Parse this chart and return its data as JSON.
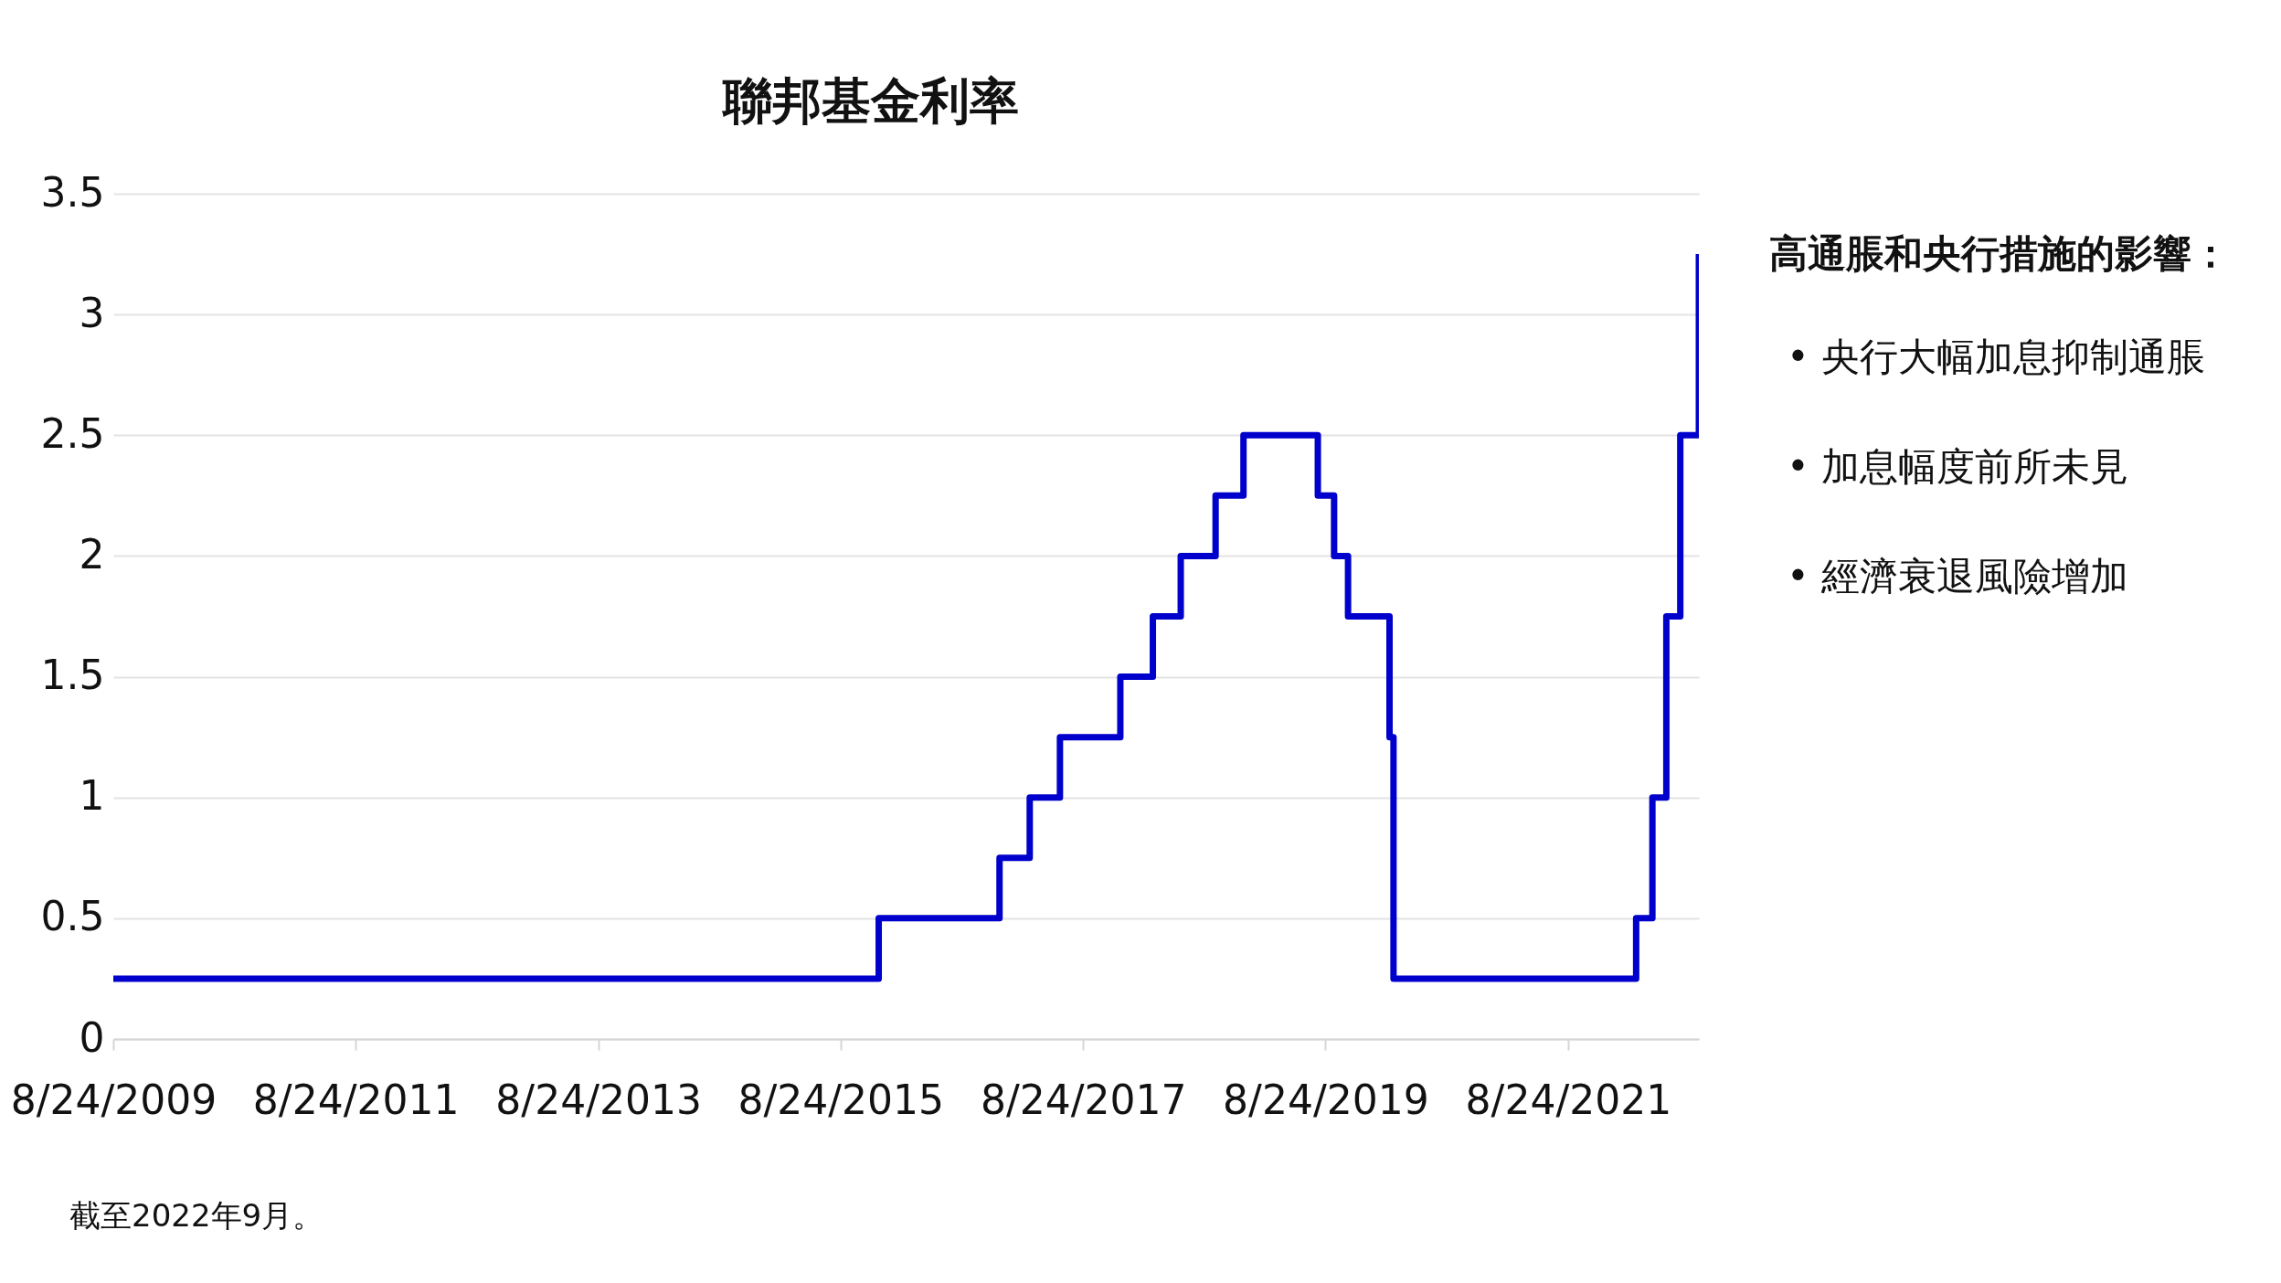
{
  "chart_data": {
    "type": "step",
    "title": "聯邦基金利率",
    "x": [
      "2009-08-24",
      "2015-12-17",
      "2016-12-15",
      "2017-03-16",
      "2017-06-15",
      "2017-12-14",
      "2018-03-22",
      "2018-06-14",
      "2018-09-27",
      "2018-12-20",
      "2019-08-01",
      "2019-09-19",
      "2019-10-31",
      "2020-03-04",
      "2020-03-16",
      "2022-03-17",
      "2022-05-05",
      "2022-06-16",
      "2022-07-28",
      "2022-09-22"
    ],
    "series": [
      {
        "color": "#0000cc",
        "values": [
          0.25,
          0.5,
          0.75,
          1.0,
          1.25,
          1.5,
          1.75,
          2.0,
          2.25,
          2.5,
          2.25,
          2.0,
          1.75,
          1.25,
          0.25,
          0.5,
          1.0,
          1.75,
          2.5,
          3.25
        ]
      }
    ],
    "xlim": [
      "2009-08-24",
      "2022-09-22"
    ],
    "xticks": [
      {
        "value": "2009-08-24",
        "label": "8/24/2009"
      },
      {
        "value": "2011-08-24",
        "label": "8/24/2011"
      },
      {
        "value": "2013-08-24",
        "label": "8/24/2013"
      },
      {
        "value": "2015-08-24",
        "label": "8/24/2015"
      },
      {
        "value": "2017-08-24",
        "label": "8/24/2017"
      },
      {
        "value": "2019-08-24",
        "label": "8/24/2019"
      },
      {
        "value": "2021-08-24",
        "label": "8/24/2021"
      }
    ],
    "ylim": [
      0,
      3.5
    ],
    "yticks": [
      0,
      0.5,
      1,
      1.5,
      2,
      2.5,
      3,
      3.5
    ],
    "grid": "y",
    "annotations": [
      "高通脹和央行措施的影響：",
      "• 央行大幅加息抑制通脹",
      "• 加息幅度前所未見",
      "• 經濟衰退風險增加",
      "截至2022年9月。"
    ]
  }
}
